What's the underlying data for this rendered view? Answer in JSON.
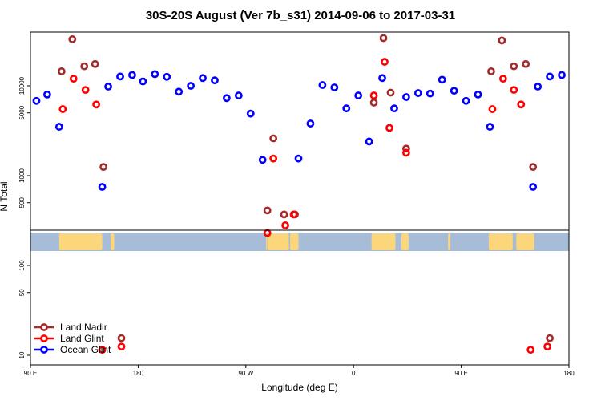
{
  "chart_data": {
    "type": "scatter",
    "title": "30S-20S August (Ver 7b_s31)   2014-09-06 to 2017-03-31",
    "xlabel": "Longitude (deg E)",
    "ylabel": "N Total",
    "yscale": "log",
    "ylim": [
      8,
      40000
    ],
    "xlim_extended_deg": [
      90,
      540
    ],
    "x_ticks": [
      {
        "value": 90,
        "label": "90 E"
      },
      {
        "value": 180,
        "label": "180"
      },
      {
        "value": 270,
        "label": "90 W"
      },
      {
        "value": 360,
        "label": "0"
      },
      {
        "value": 450,
        "label": "90 E"
      },
      {
        "value": 540,
        "label": "180"
      }
    ],
    "y_ticks_upper": [
      {
        "value": 500,
        "label": "500"
      },
      {
        "value": 1000,
        "label": "1000"
      },
      {
        "value": 5000,
        "label": "5000"
      },
      {
        "value": 10000,
        "label": "10000"
      }
    ],
    "y_ticks_lower": [
      {
        "value": 10,
        "label": "10"
      },
      {
        "value": 50,
        "label": "50"
      },
      {
        "value": 100,
        "label": "100"
      }
    ],
    "legend_position": "bottom-left",
    "series": [
      {
        "name": "Land Nadir",
        "color": "#a52a2a",
        "points": [
          {
            "x": 116,
            "y": 14500
          },
          {
            "x": 125,
            "y": 33000
          },
          {
            "x": 135,
            "y": 16500
          },
          {
            "x": 144,
            "y": 17500
          },
          {
            "x": 151,
            "y": 1250
          },
          {
            "x": 166,
            "y": 15.5
          },
          {
            "x": 288,
            "y": 410
          },
          {
            "x": 293,
            "y": 2600
          },
          {
            "x": 302,
            "y": 370
          },
          {
            "x": 311,
            "y": 370
          },
          {
            "x": 377,
            "y": 6500
          },
          {
            "x": 385,
            "y": 34000
          },
          {
            "x": 391,
            "y": 8400
          },
          {
            "x": 404,
            "y": 2000
          },
          {
            "x": 475,
            "y": 14500
          },
          {
            "x": 484,
            "y": 32000
          },
          {
            "x": 494,
            "y": 16500
          },
          {
            "x": 504,
            "y": 17500
          },
          {
            "x": 510,
            "y": 1250
          },
          {
            "x": 524,
            "y": 15.5
          }
        ]
      },
      {
        "name": "Land Glint",
        "color": "#ff0000",
        "points": [
          {
            "x": 117,
            "y": 5500
          },
          {
            "x": 126,
            "y": 12000
          },
          {
            "x": 136,
            "y": 9000
          },
          {
            "x": 145,
            "y": 6200
          },
          {
            "x": 150,
            "y": 11.5
          },
          {
            "x": 166,
            "y": 12.5
          },
          {
            "x": 288,
            "y": 230
          },
          {
            "x": 293,
            "y": 1550
          },
          {
            "x": 303,
            "y": 280
          },
          {
            "x": 310,
            "y": 370
          },
          {
            "x": 377,
            "y": 7800
          },
          {
            "x": 386,
            "y": 18500
          },
          {
            "x": 390,
            "y": 3400
          },
          {
            "x": 404,
            "y": 1800
          },
          {
            "x": 476,
            "y": 5500
          },
          {
            "x": 485,
            "y": 12000
          },
          {
            "x": 494,
            "y": 9000
          },
          {
            "x": 500,
            "y": 6200
          },
          {
            "x": 508,
            "y": 11.5
          },
          {
            "x": 522,
            "y": 12.5
          }
        ]
      },
      {
        "name": "Ocean Glint",
        "color": "#0000ff",
        "points": [
          {
            "x": 95,
            "y": 6800
          },
          {
            "x": 104,
            "y": 8000
          },
          {
            "x": 114,
            "y": 3500
          },
          {
            "x": 150,
            "y": 750
          },
          {
            "x": 155,
            "y": 9800
          },
          {
            "x": 165,
            "y": 12700
          },
          {
            "x": 175,
            "y": 13200
          },
          {
            "x": 184,
            "y": 11200
          },
          {
            "x": 194,
            "y": 13500
          },
          {
            "x": 204,
            "y": 12600
          },
          {
            "x": 214,
            "y": 8600
          },
          {
            "x": 224,
            "y": 10000
          },
          {
            "x": 234,
            "y": 12200
          },
          {
            "x": 244,
            "y": 11500
          },
          {
            "x": 254,
            "y": 7300
          },
          {
            "x": 264,
            "y": 7800
          },
          {
            "x": 274,
            "y": 4900
          },
          {
            "x": 284,
            "y": 1500
          },
          {
            "x": 314,
            "y": 1550
          },
          {
            "x": 324,
            "y": 3800
          },
          {
            "x": 334,
            "y": 10200
          },
          {
            "x": 344,
            "y": 9600
          },
          {
            "x": 354,
            "y": 5600
          },
          {
            "x": 364,
            "y": 7800
          },
          {
            "x": 373,
            "y": 2400
          },
          {
            "x": 384,
            "y": 12200
          },
          {
            "x": 394,
            "y": 5600
          },
          {
            "x": 404,
            "y": 7500
          },
          {
            "x": 414,
            "y": 8300
          },
          {
            "x": 424,
            "y": 8200
          },
          {
            "x": 434,
            "y": 11700
          },
          {
            "x": 444,
            "y": 8800
          },
          {
            "x": 454,
            "y": 6800
          },
          {
            "x": 464,
            "y": 8000
          },
          {
            "x": 474,
            "y": 3500
          },
          {
            "x": 510,
            "y": 750
          },
          {
            "x": 514,
            "y": 9800
          },
          {
            "x": 524,
            "y": 12700
          },
          {
            "x": 534,
            "y": 13200
          }
        ]
      }
    ],
    "land_strip": {
      "ocean_color": "#a7bcd7",
      "land_color": "#fbd67a",
      "land_segments_deg": [
        [
          114,
          150
        ],
        [
          157,
          160
        ],
        [
          287,
          287.5
        ],
        [
          288,
          306
        ],
        [
          307,
          314
        ],
        [
          375,
          395
        ],
        [
          400,
          406
        ],
        [
          439,
          441
        ],
        [
          473,
          493
        ],
        [
          496,
          511
        ]
      ]
    }
  }
}
